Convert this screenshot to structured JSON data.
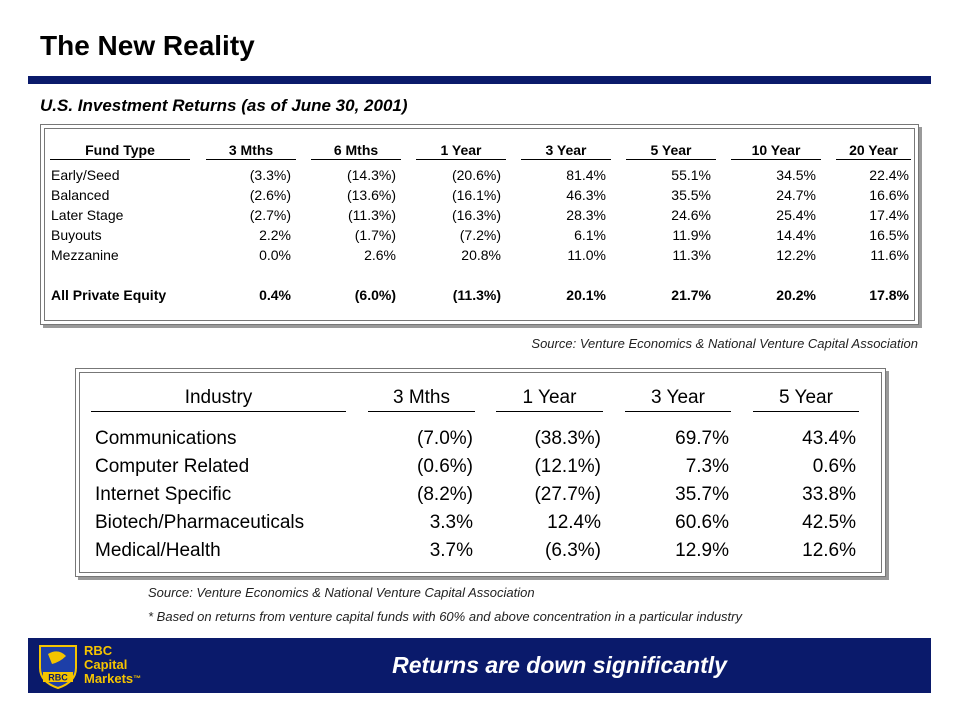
{
  "title": "The New Reality",
  "subtitle": "U.S. Investment Returns (as of June 30, 2001)",
  "fund_table": {
    "headers": [
      "Fund Type",
      "3 Mths",
      "6 Mths",
      "1 Year",
      "3 Year",
      "5 Year",
      "10 Year",
      "20 Year"
    ],
    "rows": [
      [
        "Early/Seed",
        "(3.3%)",
        "(14.3%)",
        "(20.6%)",
        "81.4%",
        "55.1%",
        "34.5%",
        "22.4%"
      ],
      [
        "Balanced",
        "(2.6%)",
        "(13.6%)",
        "(16.1%)",
        "46.3%",
        "35.5%",
        "24.7%",
        "16.6%"
      ],
      [
        "Later Stage",
        "(2.7%)",
        "(11.3%)",
        "(16.3%)",
        "28.3%",
        "24.6%",
        "25.4%",
        "17.4%"
      ],
      [
        "Buyouts",
        "2.2%",
        "(1.7%)",
        "(7.2%)",
        "6.1%",
        "11.9%",
        "14.4%",
        "16.5%"
      ],
      [
        "Mezzanine",
        "0.0%",
        "2.6%",
        "20.8%",
        "11.0%",
        "11.3%",
        "12.2%",
        "11.6%"
      ],
      [
        "All Private Equity",
        "0.4%",
        "(6.0%)",
        "(11.3%)",
        "20.1%",
        "21.7%",
        "20.2%",
        "17.8%"
      ]
    ]
  },
  "source1": "Source: Venture Economics & National Venture Capital Association",
  "industry_table": {
    "headers": [
      "Industry",
      "3 Mths",
      "1 Year",
      "3 Year",
      "5 Year"
    ],
    "rows": [
      [
        "Communications",
        "(7.0%)",
        "(38.3%)",
        "69.7%",
        "43.4%"
      ],
      [
        "Computer Related",
        "(0.6%)",
        "(12.1%)",
        "7.3%",
        "0.6%"
      ],
      [
        "Internet Specific",
        "(8.2%)",
        "(27.7%)",
        "35.7%",
        "33.8%"
      ],
      [
        "Biotech/Pharmaceuticals",
        "3.3%",
        "12.4%",
        "60.6%",
        "42.5%"
      ],
      [
        "Medical/Health",
        "3.7%",
        "(6.3%)",
        "12.9%",
        "12.6%"
      ]
    ]
  },
  "source2": "Source: Venture Economics & National Venture Capital Association",
  "footnote": "* Based on returns from venture capital funds with 60% and above concentration in a particular industry",
  "footer": {
    "text": "Returns are down significantly",
    "logo_lines": [
      "RBC",
      "Capital",
      "Markets"
    ],
    "logo_monogram": "RBC",
    "logo_tm": "™",
    "brand_color": "#0a1a6b",
    "accent_color": "#f5c400"
  }
}
